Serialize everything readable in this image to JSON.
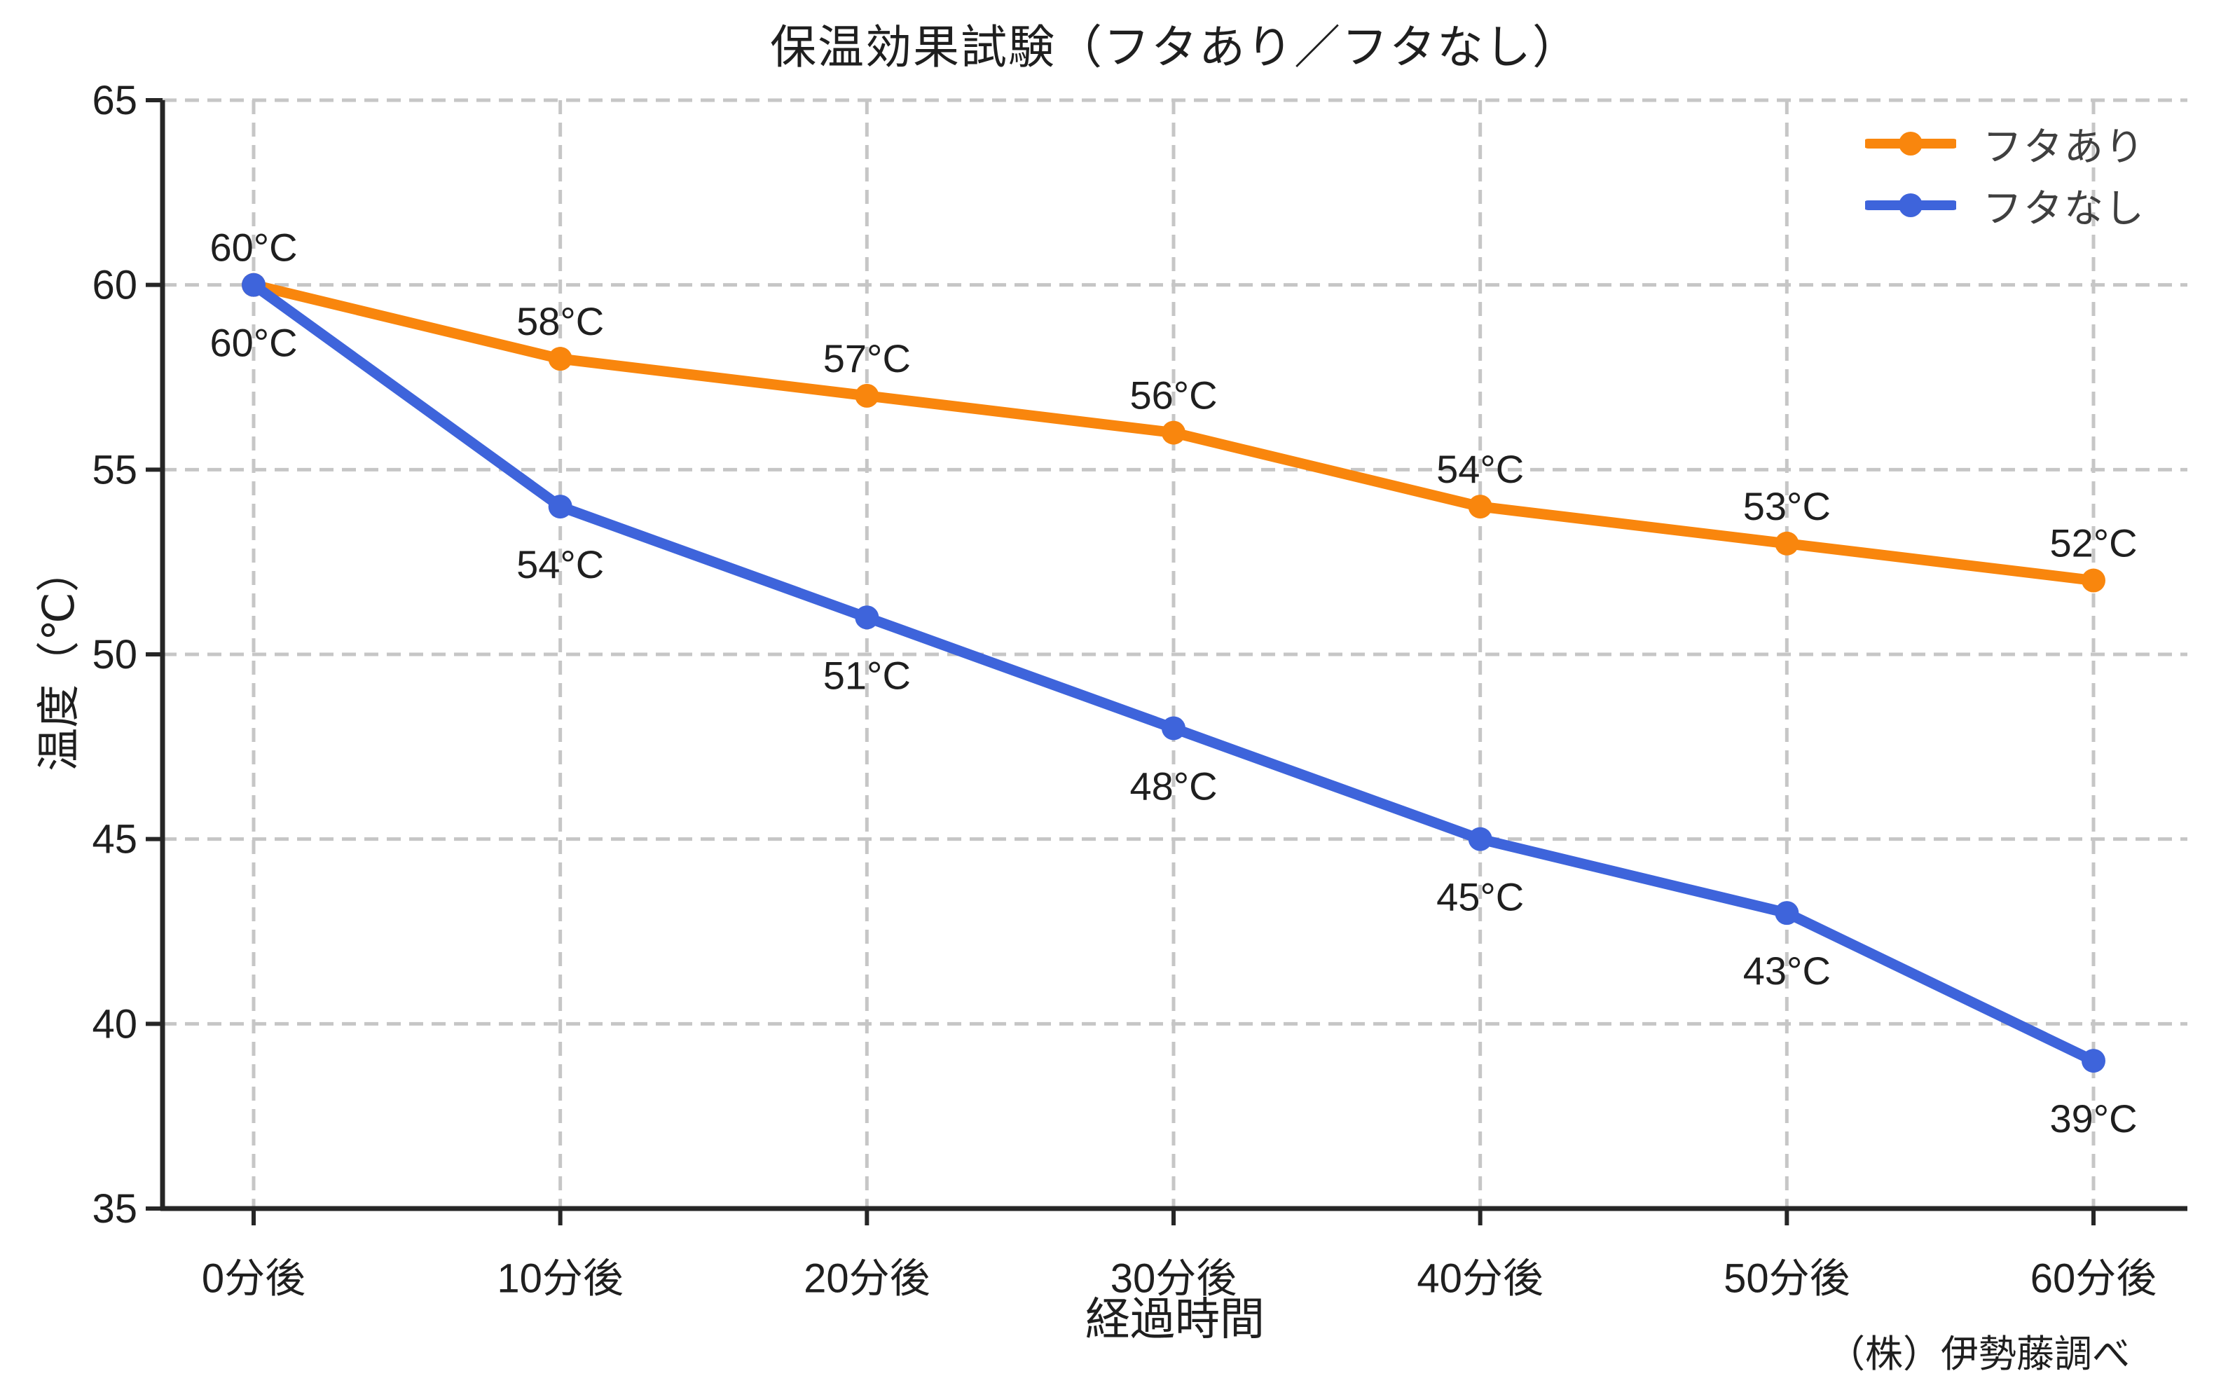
{
  "chart_data": {
    "type": "line",
    "title": "保温効果試験（フタあり／フタなし）",
    "xlabel": "経過時間",
    "ylabel": "温度（℃）",
    "annotation": "（株）伊勢藤調べ",
    "categories": [
      "0分後",
      "10分後",
      "20分後",
      "30分後",
      "40分後",
      "50分後",
      "60分後"
    ],
    "series": [
      {
        "name": "フタあり",
        "values": [
          60,
          58,
          57,
          56,
          54,
          53,
          52
        ],
        "point_labels": [
          "60°C",
          "58°C",
          "57°C",
          "56°C",
          "54°C",
          "53°C",
          "52°C"
        ],
        "color": "#F9860D",
        "label_position": "above"
      },
      {
        "name": "フタなし",
        "values": [
          60,
          54,
          51,
          48,
          45,
          43,
          39
        ],
        "point_labels": [
          "60°C",
          "54°C",
          "51°C",
          "48°C",
          "45°C",
          "43°C",
          "39°C"
        ],
        "color": "#3E64DB",
        "label_position": "below"
      }
    ],
    "ylim": [
      35,
      65
    ],
    "yticks": [
      35,
      40,
      45,
      50,
      55,
      60,
      65
    ],
    "grid": true,
    "grid_style": "dashed",
    "legend_position": "upper right"
  },
  "colors": {
    "background": "#FFFFFF",
    "grid": "#C6C6C6",
    "spine": "#262626",
    "tick_text": "#1F1F1F",
    "data_label_text": "#1F1F1F",
    "legend_text": "#3F3F3F"
  }
}
